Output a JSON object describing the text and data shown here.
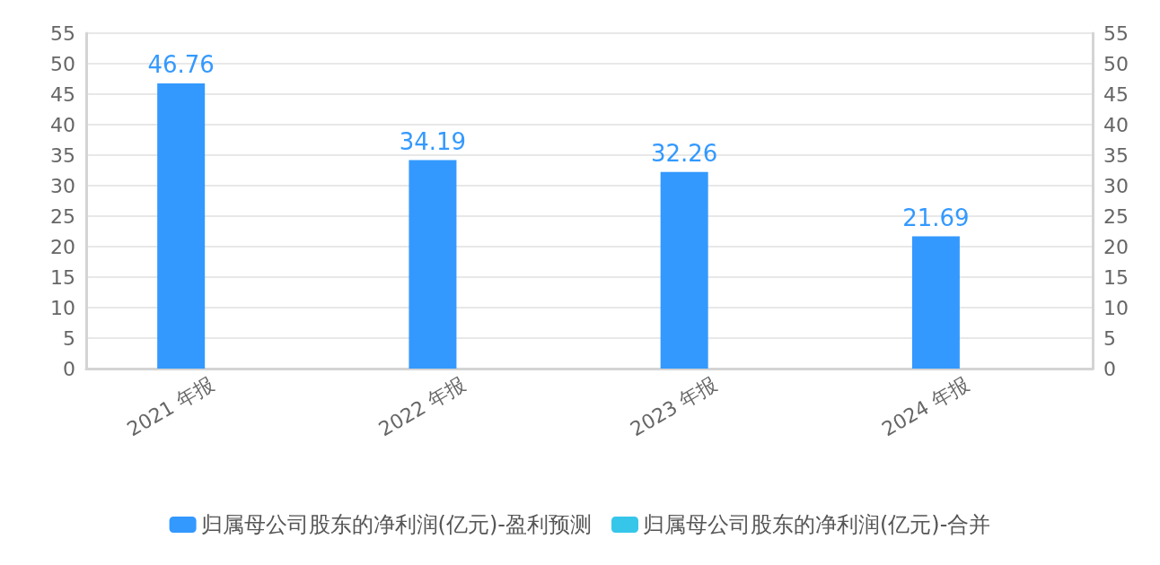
{
  "chart_data": {
    "type": "bar",
    "categories": [
      "2021 年报",
      "2022 年报",
      "2023 年报",
      "2024 年报"
    ],
    "series": [
      {
        "name": "归属母公司股东的净利润(亿元)-盈利预测",
        "color": "#3399ff",
        "values": [
          46.76,
          34.19,
          32.26,
          21.69
        ]
      },
      {
        "name": "归属母公司股东的净利润(亿元)-合并",
        "color": "#36c6ea",
        "values": [
          null,
          null,
          null,
          null
        ]
      }
    ],
    "ylim": [
      0,
      55
    ],
    "yticks": [
      0,
      5,
      10,
      15,
      20,
      25,
      30,
      35,
      40,
      45,
      50,
      55
    ],
    "y2lim": [
      0,
      55
    ],
    "y2ticks": [
      0,
      5,
      10,
      15,
      20,
      25,
      30,
      35,
      40,
      45,
      50,
      55
    ],
    "grid": "y",
    "legend": "bottom",
    "data_labels": true
  }
}
